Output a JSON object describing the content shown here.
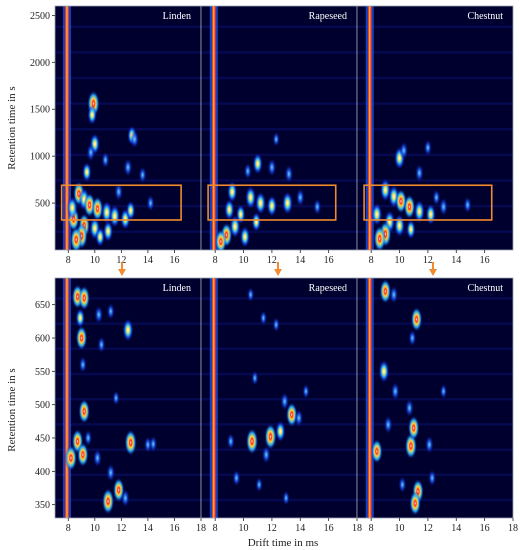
{
  "figure": {
    "ylabel": "Retention time in s",
    "xlabel": "Drift time in ms"
  },
  "chart_data": [
    {
      "type": "heatmap",
      "row": "top",
      "panels": [
        "Linden",
        "Rapeseed",
        "Chestnut"
      ],
      "xlabel": "",
      "ylabel": "Retention time in s",
      "xlim": [
        7,
        18
      ],
      "ylim": [
        0,
        2600
      ],
      "xticks": [
        8,
        10,
        12,
        14,
        16
      ],
      "yticks": [
        500,
        1000,
        1500,
        2000,
        2500
      ],
      "highlight_box": {
        "x": [
          7.5,
          16.5
        ],
        "y": [
          320,
          690
        ],
        "color": "#f28a2e"
      },
      "reactant_ion_peak_x": 7.9,
      "blobs": [
        [
          {
            "x": 9.9,
            "y": 1560,
            "i": 1.0
          },
          {
            "x": 9.8,
            "y": 1440,
            "i": 0.6
          },
          {
            "x": 10.0,
            "y": 1130,
            "i": 0.7
          },
          {
            "x": 9.7,
            "y": 1040,
            "i": 0.5
          },
          {
            "x": 9.4,
            "y": 830,
            "i": 0.6
          },
          {
            "x": 12.8,
            "y": 1220,
            "i": 0.6
          },
          {
            "x": 13.0,
            "y": 1180,
            "i": 0.5
          },
          {
            "x": 10.8,
            "y": 960,
            "i": 0.4
          },
          {
            "x": 12.5,
            "y": 880,
            "i": 0.5
          },
          {
            "x": 13.6,
            "y": 800,
            "i": 0.4
          },
          {
            "x": 8.8,
            "y": 600,
            "i": 0.9
          },
          {
            "x": 9.2,
            "y": 540,
            "i": 0.8
          },
          {
            "x": 9.6,
            "y": 480,
            "i": 0.9
          },
          {
            "x": 10.2,
            "y": 440,
            "i": 0.9
          },
          {
            "x": 10.9,
            "y": 400,
            "i": 0.8
          },
          {
            "x": 11.5,
            "y": 360,
            "i": 0.8
          },
          {
            "x": 12.3,
            "y": 330,
            "i": 0.7
          },
          {
            "x": 12.7,
            "y": 420,
            "i": 0.6
          },
          {
            "x": 9.2,
            "y": 260,
            "i": 0.9
          },
          {
            "x": 10.0,
            "y": 230,
            "i": 0.8
          },
          {
            "x": 11.0,
            "y": 200,
            "i": 0.7
          },
          {
            "x": 9.0,
            "y": 150,
            "i": 1.0
          },
          {
            "x": 8.6,
            "y": 110,
            "i": 1.0
          },
          {
            "x": 10.4,
            "y": 140,
            "i": 0.6
          },
          {
            "x": 8.4,
            "y": 330,
            "i": 0.9
          },
          {
            "x": 8.3,
            "y": 450,
            "i": 0.8
          },
          {
            "x": 11.8,
            "y": 620,
            "i": 0.5
          },
          {
            "x": 14.2,
            "y": 500,
            "i": 0.4
          }
        ],
        [
          {
            "x": 11.0,
            "y": 920,
            "i": 0.7
          },
          {
            "x": 12.0,
            "y": 880,
            "i": 0.5
          },
          {
            "x": 10.3,
            "y": 840,
            "i": 0.4
          },
          {
            "x": 13.2,
            "y": 810,
            "i": 0.5
          },
          {
            "x": 9.2,
            "y": 620,
            "i": 0.7
          },
          {
            "x": 10.5,
            "y": 560,
            "i": 0.8
          },
          {
            "x": 11.2,
            "y": 500,
            "i": 0.8
          },
          {
            "x": 12.0,
            "y": 470,
            "i": 0.7
          },
          {
            "x": 13.1,
            "y": 500,
            "i": 0.8
          },
          {
            "x": 14.0,
            "y": 560,
            "i": 0.5
          },
          {
            "x": 9.0,
            "y": 430,
            "i": 0.7
          },
          {
            "x": 9.8,
            "y": 380,
            "i": 0.6
          },
          {
            "x": 10.9,
            "y": 300,
            "i": 0.6
          },
          {
            "x": 9.4,
            "y": 250,
            "i": 0.8
          },
          {
            "x": 8.8,
            "y": 160,
            "i": 0.9
          },
          {
            "x": 10.1,
            "y": 140,
            "i": 0.7
          },
          {
            "x": 8.4,
            "y": 90,
            "i": 0.9
          },
          {
            "x": 12.3,
            "y": 1180,
            "i": 0.3
          },
          {
            "x": 15.2,
            "y": 460,
            "i": 0.4
          }
        ],
        [
          {
            "x": 10.0,
            "y": 980,
            "i": 0.8
          },
          {
            "x": 10.3,
            "y": 1060,
            "i": 0.5
          },
          {
            "x": 12.0,
            "y": 1090,
            "i": 0.4
          },
          {
            "x": 11.4,
            "y": 820,
            "i": 0.5
          },
          {
            "x": 9.0,
            "y": 640,
            "i": 0.8
          },
          {
            "x": 9.6,
            "y": 570,
            "i": 0.8
          },
          {
            "x": 10.1,
            "y": 520,
            "i": 0.9
          },
          {
            "x": 10.7,
            "y": 460,
            "i": 0.9
          },
          {
            "x": 11.4,
            "y": 410,
            "i": 0.8
          },
          {
            "x": 12.2,
            "y": 380,
            "i": 0.7
          },
          {
            "x": 13.1,
            "y": 460,
            "i": 0.5
          },
          {
            "x": 9.3,
            "y": 300,
            "i": 0.8
          },
          {
            "x": 10.0,
            "y": 260,
            "i": 0.8
          },
          {
            "x": 10.8,
            "y": 220,
            "i": 0.6
          },
          {
            "x": 9.0,
            "y": 170,
            "i": 1.0
          },
          {
            "x": 8.6,
            "y": 120,
            "i": 1.0
          },
          {
            "x": 8.4,
            "y": 380,
            "i": 0.8
          },
          {
            "x": 12.6,
            "y": 560,
            "i": 0.4
          },
          {
            "x": 14.8,
            "y": 480,
            "i": 0.4
          }
        ]
      ]
    },
    {
      "type": "heatmap",
      "row": "bottom",
      "panels": [
        "Linden",
        "Rapeseed",
        "Chestnut"
      ],
      "xlabel": "Drift time in ms",
      "ylabel": "Retention time in s",
      "xlim": [
        7,
        18
      ],
      "ylim": [
        330,
        690
      ],
      "xticks": [
        8,
        10,
        12,
        14,
        16,
        18
      ],
      "yticks": [
        350,
        400,
        450,
        500,
        550,
        600,
        650
      ],
      "reactant_ion_peak_x": 7.9,
      "blobs": [
        [
          {
            "x": 8.7,
            "y": 662,
            "i": 0.9
          },
          {
            "x": 9.2,
            "y": 660,
            "i": 0.9
          },
          {
            "x": 8.9,
            "y": 630,
            "i": 0.6
          },
          {
            "x": 9.0,
            "y": 600,
            "i": 0.9
          },
          {
            "x": 10.3,
            "y": 635,
            "i": 0.5
          },
          {
            "x": 11.2,
            "y": 640,
            "i": 0.4
          },
          {
            "x": 12.5,
            "y": 612,
            "i": 0.8
          },
          {
            "x": 9.1,
            "y": 560,
            "i": 0.4
          },
          {
            "x": 11.6,
            "y": 510,
            "i": 0.3
          },
          {
            "x": 9.2,
            "y": 490,
            "i": 0.9
          },
          {
            "x": 9.5,
            "y": 450,
            "i": 0.4
          },
          {
            "x": 10.2,
            "y": 420,
            "i": 0.5
          },
          {
            "x": 8.7,
            "y": 445,
            "i": 0.9
          },
          {
            "x": 9.1,
            "y": 425,
            "i": 0.9
          },
          {
            "x": 12.7,
            "y": 443,
            "i": 1.0
          },
          {
            "x": 14.0,
            "y": 440,
            "i": 0.4
          },
          {
            "x": 14.4,
            "y": 441,
            "i": 0.4
          },
          {
            "x": 11.2,
            "y": 398,
            "i": 0.5
          },
          {
            "x": 11.8,
            "y": 372,
            "i": 0.9
          },
          {
            "x": 11.0,
            "y": 355,
            "i": 1.0
          },
          {
            "x": 12.3,
            "y": 360,
            "i": 0.5
          },
          {
            "x": 8.2,
            "y": 420,
            "i": 1.0
          },
          {
            "x": 10.5,
            "y": 590,
            "i": 0.4
          }
        ],
        [
          {
            "x": 10.5,
            "y": 665,
            "i": 0.3
          },
          {
            "x": 11.4,
            "y": 630,
            "i": 0.3
          },
          {
            "x": 12.3,
            "y": 620,
            "i": 0.3
          },
          {
            "x": 10.8,
            "y": 540,
            "i": 0.3
          },
          {
            "x": 12.9,
            "y": 505,
            "i": 0.5
          },
          {
            "x": 13.4,
            "y": 485,
            "i": 0.9
          },
          {
            "x": 13.9,
            "y": 480,
            "i": 0.5
          },
          {
            "x": 10.6,
            "y": 445,
            "i": 1.0
          },
          {
            "x": 11.9,
            "y": 452,
            "i": 1.0
          },
          {
            "x": 12.6,
            "y": 460,
            "i": 0.7
          },
          {
            "x": 11.6,
            "y": 425,
            "i": 0.5
          },
          {
            "x": 9.5,
            "y": 390,
            "i": 0.4
          },
          {
            "x": 11.1,
            "y": 380,
            "i": 0.3
          },
          {
            "x": 9.1,
            "y": 445,
            "i": 0.4
          },
          {
            "x": 13.0,
            "y": 360,
            "i": 0.3
          },
          {
            "x": 14.4,
            "y": 520,
            "i": 0.3
          }
        ],
        [
          {
            "x": 9.0,
            "y": 670,
            "i": 0.9
          },
          {
            "x": 9.6,
            "y": 665,
            "i": 0.5
          },
          {
            "x": 11.2,
            "y": 628,
            "i": 0.9
          },
          {
            "x": 10.9,
            "y": 600,
            "i": 0.4
          },
          {
            "x": 8.9,
            "y": 550,
            "i": 0.8
          },
          {
            "x": 9.7,
            "y": 520,
            "i": 0.5
          },
          {
            "x": 10.7,
            "y": 495,
            "i": 0.5
          },
          {
            "x": 9.2,
            "y": 470,
            "i": 0.5
          },
          {
            "x": 10.8,
            "y": 438,
            "i": 1.0
          },
          {
            "x": 11.0,
            "y": 465,
            "i": 0.9
          },
          {
            "x": 12.1,
            "y": 440,
            "i": 0.5
          },
          {
            "x": 11.3,
            "y": 370,
            "i": 0.9
          },
          {
            "x": 11.1,
            "y": 352,
            "i": 0.9
          },
          {
            "x": 10.2,
            "y": 380,
            "i": 0.4
          },
          {
            "x": 8.4,
            "y": 430,
            "i": 0.9
          },
          {
            "x": 12.3,
            "y": 390,
            "i": 0.4
          },
          {
            "x": 13.1,
            "y": 520,
            "i": 0.3
          }
        ]
      ]
    }
  ]
}
